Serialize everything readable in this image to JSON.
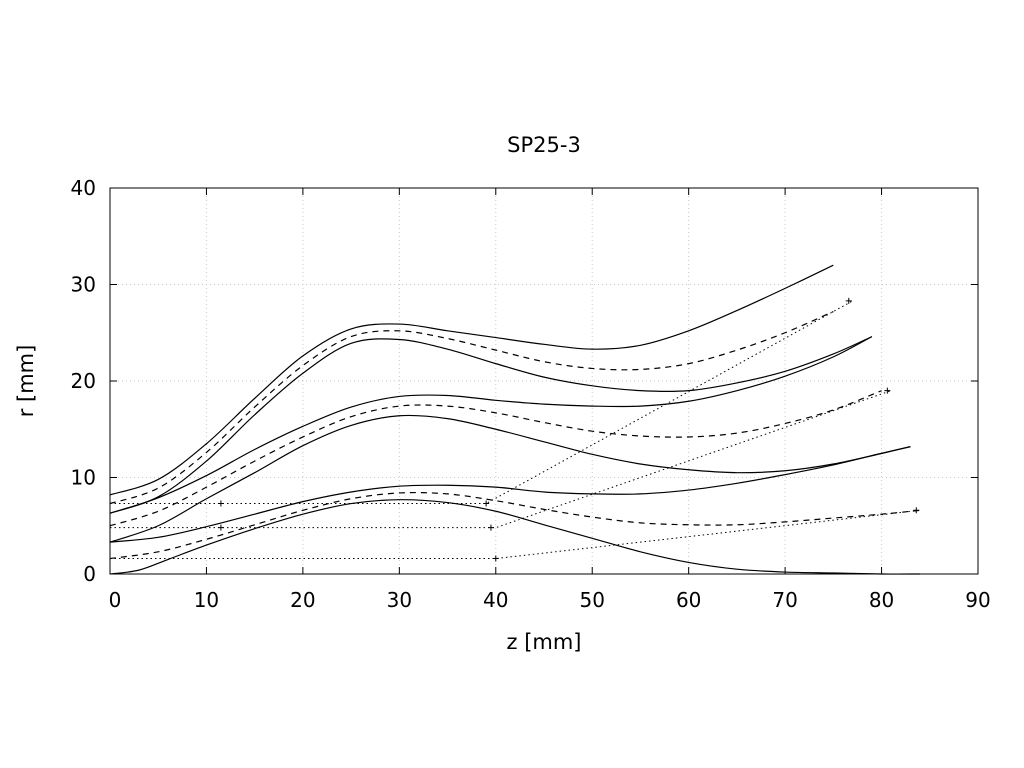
{
  "chart_data": {
    "type": "line",
    "title": "SP25-3",
    "xlabel": "z [mm]",
    "ylabel": "r [mm]",
    "xlim": [
      0,
      90
    ],
    "ylim": [
      0,
      40
    ],
    "xticks": [
      0,
      10,
      20,
      30,
      40,
      50,
      60,
      70,
      80,
      90
    ],
    "yticks": [
      0,
      10,
      20,
      30,
      40
    ],
    "grid": true,
    "legend": false,
    "series": [
      {
        "style": "solid",
        "x": [
          0,
          5,
          10,
          15,
          20,
          25,
          30,
          35,
          40,
          45,
          50,
          55,
          60,
          65,
          70,
          75
        ],
        "y": [
          8.2,
          9.8,
          13.5,
          18.2,
          22.6,
          25.4,
          25.9,
          25.2,
          24.5,
          23.8,
          23.3,
          23.7,
          25.2,
          27.3,
          29.6,
          32.0
        ]
      },
      {
        "style": "dashed",
        "x": [
          0,
          5,
          10,
          15,
          20,
          25,
          30,
          35,
          40,
          45,
          50,
          55,
          60,
          65,
          70,
          75
        ],
        "y": [
          7.3,
          8.9,
          12.6,
          17.3,
          21.6,
          24.6,
          25.2,
          24.4,
          23.2,
          22.0,
          21.3,
          21.2,
          21.8,
          23.2,
          25.0,
          27.2
        ]
      },
      {
        "style": "solid",
        "x": [
          0,
          5,
          10,
          15,
          20,
          25,
          30,
          35,
          40,
          45,
          50,
          55,
          60,
          65,
          70,
          75,
          79
        ],
        "y": [
          6.3,
          8.0,
          11.7,
          16.5,
          20.8,
          23.9,
          24.3,
          23.3,
          21.8,
          20.4,
          19.5,
          19.0,
          19.0,
          19.8,
          21.0,
          22.8,
          24.6
        ]
      },
      {
        "style": "solid",
        "x": [
          0,
          5,
          10,
          15,
          20,
          25,
          30,
          35,
          40,
          45,
          50,
          55,
          60,
          65,
          70,
          75,
          79
        ],
        "y": [
          6.3,
          7.9,
          10.2,
          12.9,
          15.3,
          17.3,
          18.4,
          18.5,
          18.0,
          17.6,
          17.4,
          17.4,
          17.9,
          19.0,
          20.5,
          22.5,
          24.6
        ]
      },
      {
        "style": "dashed",
        "x": [
          0,
          5,
          10,
          15,
          20,
          25,
          30,
          35,
          40,
          45,
          50,
          55,
          60,
          65,
          70,
          75,
          80
        ],
        "y": [
          5.0,
          6.5,
          9.0,
          11.7,
          14.2,
          16.3,
          17.4,
          17.4,
          16.7,
          15.7,
          14.8,
          14.3,
          14.2,
          14.6,
          15.6,
          17.0,
          19.0
        ]
      },
      {
        "style": "solid",
        "x": [
          0,
          5,
          10,
          15,
          20,
          25,
          30,
          35,
          40,
          45,
          50,
          55,
          60,
          65,
          70,
          75,
          80,
          83
        ],
        "y": [
          3.3,
          5.0,
          7.8,
          10.5,
          13.3,
          15.4,
          16.4,
          16.1,
          15.0,
          13.7,
          12.4,
          11.4,
          10.8,
          10.5,
          10.7,
          11.4,
          12.5,
          13.2
        ]
      },
      {
        "style": "solid",
        "x": [
          0,
          5,
          10,
          15,
          20,
          25,
          30,
          35,
          40,
          45,
          50,
          55,
          60,
          65,
          70,
          75,
          80,
          83
        ],
        "y": [
          3.3,
          3.8,
          4.9,
          6.2,
          7.5,
          8.5,
          9.1,
          9.2,
          9.0,
          8.5,
          8.3,
          8.3,
          8.7,
          9.4,
          10.3,
          11.3,
          12.5,
          13.2
        ]
      },
      {
        "style": "dashed",
        "x": [
          0,
          5,
          10,
          15,
          20,
          25,
          30,
          35,
          40,
          45,
          50,
          55,
          60,
          65,
          70,
          75,
          80,
          84
        ],
        "y": [
          1.6,
          2.3,
          3.6,
          5.1,
          6.6,
          7.8,
          8.4,
          8.3,
          7.6,
          6.7,
          5.9,
          5.3,
          5.1,
          5.1,
          5.4,
          5.8,
          6.2,
          6.6
        ]
      },
      {
        "style": "solid",
        "x": [
          0,
          3,
          6,
          10,
          15,
          20,
          25,
          30,
          35,
          40,
          45,
          50,
          55,
          60,
          65,
          70,
          75,
          80,
          84
        ],
        "y": [
          0.0,
          0.4,
          1.5,
          3.0,
          4.7,
          6.2,
          7.3,
          7.7,
          7.4,
          6.5,
          5.1,
          3.7,
          2.3,
          1.2,
          0.5,
          0.2,
          0.1,
          0.0,
          0.0
        ]
      },
      {
        "style": "dotted",
        "x": [
          0,
          12,
          39,
          77
        ],
        "y": [
          7.3,
          7.3,
          7.3,
          28.3
        ]
      },
      {
        "style": "dotted",
        "x": [
          0,
          12,
          40,
          81
        ],
        "y": [
          4.8,
          4.8,
          4.8,
          19.0
        ]
      },
      {
        "style": "dotted",
        "x": [
          0,
          40,
          84
        ],
        "y": [
          1.6,
          1.6,
          6.6
        ]
      }
    ],
    "markers": [
      {
        "x": 11.5,
        "y": 7.3
      },
      {
        "x": 11.5,
        "y": 4.8
      },
      {
        "x": 39.0,
        "y": 7.3
      },
      {
        "x": 39.5,
        "y": 4.8
      },
      {
        "x": 40.0,
        "y": 1.6
      },
      {
        "x": 76.6,
        "y": 28.3
      },
      {
        "x": 80.6,
        "y": 19.0
      },
      {
        "x": 83.6,
        "y": 6.6
      }
    ]
  }
}
